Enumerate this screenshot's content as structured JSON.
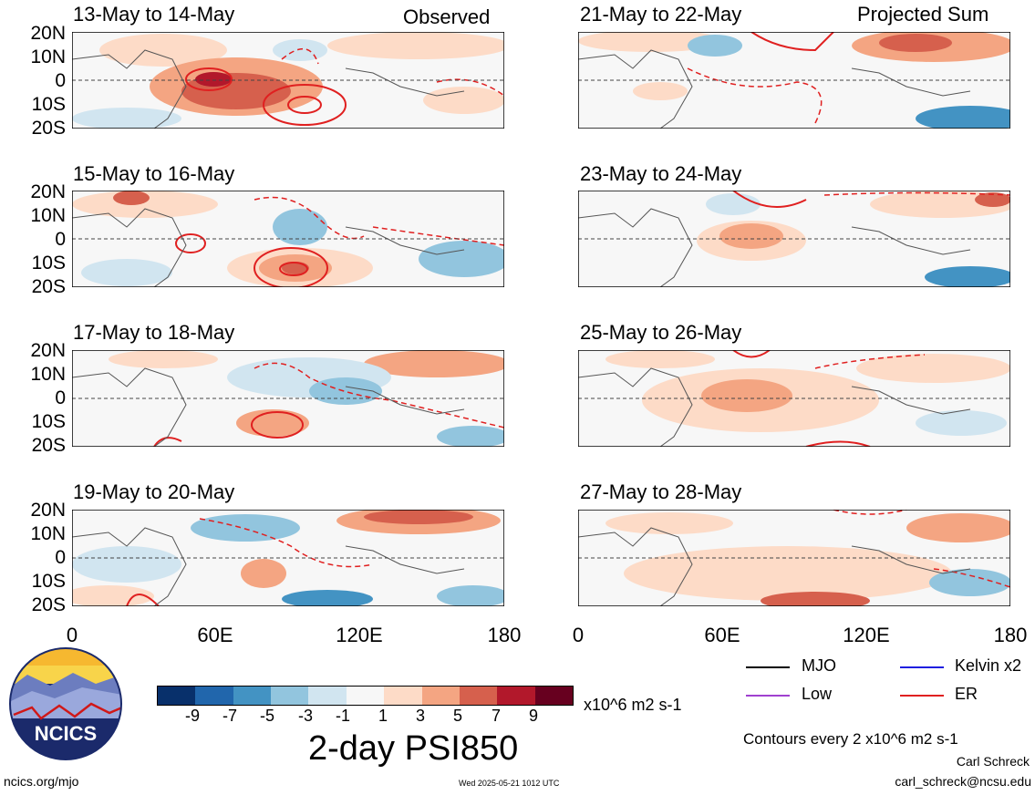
{
  "header": {
    "left_label": "Observed",
    "right_label": "Projected Sum"
  },
  "columns": [
    {
      "periods": [
        "13-May to 14-May",
        "15-May to 16-May",
        "17-May to 18-May",
        "19-May to 20-May"
      ],
      "lon_ticks": [
        "0",
        "60E",
        "120E",
        "180"
      ]
    },
    {
      "periods": [
        "21-May to 22-May",
        "23-May to 24-May",
        "25-May to 26-May",
        "27-May to 28-May"
      ],
      "lon_ticks": [
        "0",
        "60E",
        "120E",
        "180"
      ]
    }
  ],
  "lat_ticks": [
    "20N",
    "10N",
    "0",
    "10S",
    "20S"
  ],
  "colorbar": {
    "ticks": [
      "-9",
      "-7",
      "-5",
      "-3",
      "-1",
      "1",
      "3",
      "5",
      "7",
      "9"
    ],
    "colors": [
      "#08306b",
      "#2166ac",
      "#4393c3",
      "#92c5de",
      "#d1e5f0",
      "#f7f7f7",
      "#fddbc7",
      "#f4a582",
      "#d6604d",
      "#b2182b",
      "#67001f"
    ],
    "units": "x10^6 m2 s-1",
    "title": "2-day PSI850"
  },
  "legend": {
    "items": [
      {
        "label": "MJO",
        "color": "#000000"
      },
      {
        "label": "Kelvin x2",
        "color": "#1f1fe0"
      },
      {
        "label": "Low",
        "color": "#a040d0"
      },
      {
        "label": "ER",
        "color": "#e02020"
      }
    ],
    "contours_note": "Contours every 2 x10^6 m2 s-1"
  },
  "logo": {
    "text": "NCICS"
  },
  "footer": {
    "url": "ncics.org/mjo",
    "timestamp": "Wed 2025-05-21 1012 UTC",
    "author": "Carl Schreck",
    "email": "carl_schreck@ncsu.edu"
  }
}
